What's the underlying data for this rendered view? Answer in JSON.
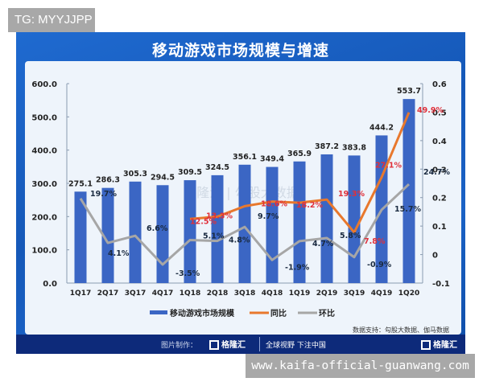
{
  "watermark_top": "TG: MYYJJPP",
  "watermark_bottom": "www.kaifa-official-guanwang.com",
  "card": {
    "title": "移动游戏市场规模与增速",
    "center_watermark": "格隆汇 | 勾股大数据",
    "source": "数据支持：勾股大数据、伽马数据",
    "footer_maker": "图片制作：",
    "footer_brand": "格隆汇",
    "footer_slogan": "全球视野 下注中国",
    "footer_brand_right": "格隆汇"
  },
  "colors": {
    "bar": "#3b66c4",
    "yoy_line": "#e8782d",
    "qoq_line": "#a6a6a6",
    "yoy_label": "#e0303a",
    "frame": "#1558b8",
    "footer": "#0d2a7a"
  },
  "chart_data": {
    "type": "bar",
    "title": "移动游戏市场规模与增速",
    "categories": [
      "1Q17",
      "2Q17",
      "3Q17",
      "4Q17",
      "1Q18",
      "2Q18",
      "3Q18",
      "4Q18",
      "1Q19",
      "2Q19",
      "3Q19",
      "4Q19",
      "1Q20"
    ],
    "series": [
      {
        "name": "移动游戏市场规模",
        "type": "bar",
        "axis": "left",
        "values": [
          275.1,
          286.3,
          305.3,
          294.5,
          309.5,
          324.5,
          356.1,
          349.4,
          365.9,
          387.2,
          383.8,
          444.2,
          553.7
        ],
        "labels": [
          "275.1",
          "286.3",
          "305.3",
          "294.5",
          "309.5",
          "324.5",
          "356.1",
          "349.4",
          "365.9",
          "387.2",
          "383.8",
          "444.2",
          "553.7"
        ]
      },
      {
        "name": "同比",
        "type": "line",
        "axis": "right",
        "values": [
          null,
          null,
          null,
          null,
          0.125,
          0.133,
          0.17,
          0.186,
          0.182,
          0.193,
          0.078,
          0.271,
          0.499
        ],
        "labels": [
          null,
          null,
          null,
          null,
          "12.5%",
          "13.3%",
          null,
          "18.6%",
          "18.2%",
          "19.3%",
          "7.8%",
          "27.1%",
          "49.9%"
        ]
      },
      {
        "name": "环比",
        "type": "line",
        "axis": "right",
        "values": [
          0.197,
          0.041,
          0.066,
          -0.035,
          0.051,
          0.048,
          0.097,
          -0.019,
          0.047,
          0.058,
          -0.009,
          0.157,
          0.247
        ],
        "labels": [
          "19.7%",
          "4.1%",
          "6.6%",
          "-3.5%",
          "5.1%",
          "4.8%",
          "9.7%",
          "-1.9%",
          "4.7%",
          "5.8%",
          "-0.9%",
          "15.7%",
          "24.7%"
        ]
      }
    ],
    "left_axis": {
      "ticks": [
        "0.0",
        "100.0",
        "200.0",
        "300.0",
        "400.0",
        "500.0",
        "600.0"
      ],
      "range": [
        0,
        600
      ]
    },
    "right_axis": {
      "ticks": [
        "-0.1",
        "0",
        "0.1",
        "0.2",
        "0.3",
        "0.4",
        "0.5",
        "0.6"
      ],
      "range": [
        -0.1,
        0.6
      ]
    },
    "legend": [
      "移动游戏市场规模",
      "同比",
      "环比"
    ],
    "legend_position": "bottom",
    "grid": false
  }
}
